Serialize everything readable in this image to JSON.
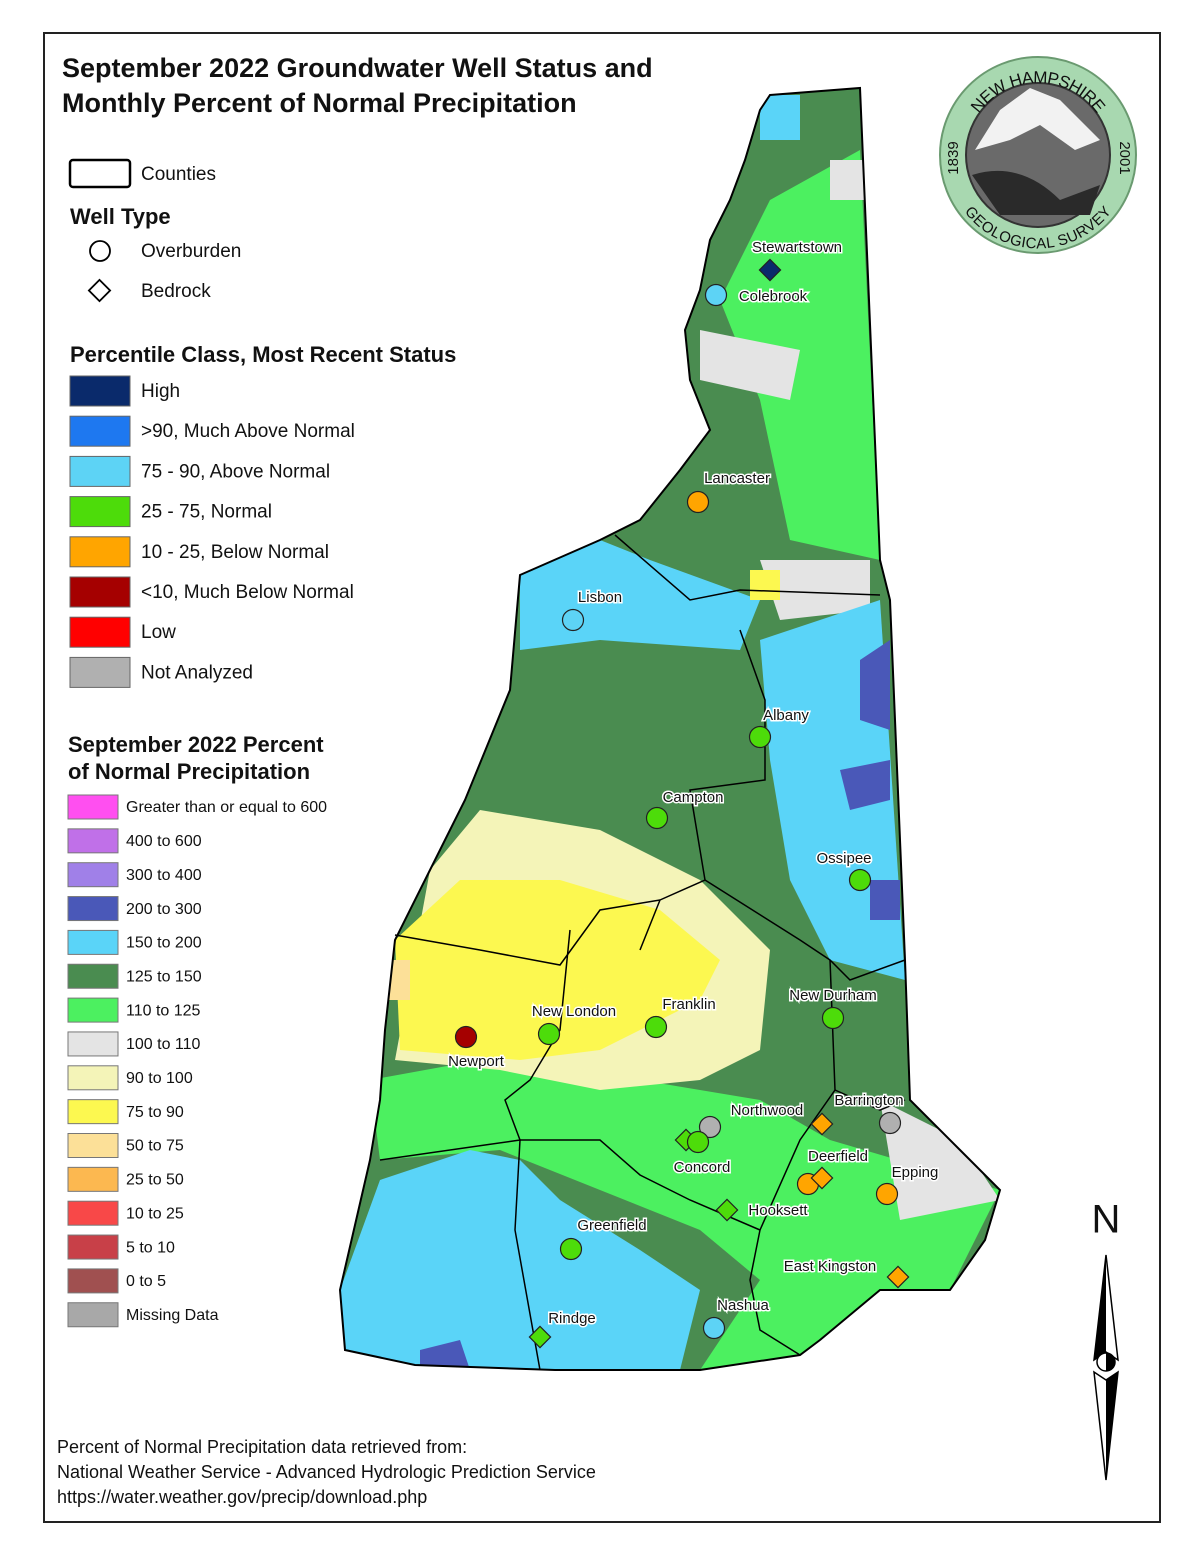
{
  "title_lines": [
    "September 2022 Groundwater Well Status and",
    "Monthly Percent of Normal Precipitation"
  ],
  "legend": {
    "counties": "Counties",
    "well_type": {
      "title": "Well Type",
      "items": [
        "Overburden",
        "Bedrock"
      ]
    },
    "percentile": {
      "title": "Percentile Class, Most Recent Status",
      "items": [
        {
          "label": "High",
          "color": "#0a2a6b"
        },
        {
          "label": ">90, Much Above Normal",
          "color": "#1e78f0"
        },
        {
          "label": "75 - 90, Above Normal",
          "color": "#5dd3f5"
        },
        {
          "label": "25 - 75, Normal",
          "color": "#4ddc0a"
        },
        {
          "label": "10 - 25, Below Normal",
          "color": "#ffa500"
        },
        {
          "label": "<10, Much Below Normal",
          "color": "#a50000"
        },
        {
          "label": "Low",
          "color": "#ff0000"
        },
        {
          "label": "Not Analyzed",
          "color": "#b0b0b0"
        }
      ]
    },
    "precip": {
      "title_lines": [
        "September 2022 Percent",
        "of Normal Precipitation"
      ],
      "items": [
        {
          "label": "Greater than or equal to 600",
          "color": "#ff4ff0"
        },
        {
          "label": "400 to 600",
          "color": "#c070e8"
        },
        {
          "label": "300 to 400",
          "color": "#a080e8"
        },
        {
          "label": "200 to 300",
          "color": "#4a58b8"
        },
        {
          "label": "150 to 200",
          "color": "#5ad4f8"
        },
        {
          "label": "125 to 150",
          "color": "#4a8c50"
        },
        {
          "label": "110 to 125",
          "color": "#4cf060"
        },
        {
          "label": "100 to 110",
          "color": "#e4e4e4"
        },
        {
          "label": "90 to 100",
          "color": "#f4f4b8"
        },
        {
          "label": "75 to 90",
          "color": "#fcf850"
        },
        {
          "label": "50 to 75",
          "color": "#fce098"
        },
        {
          "label": "25 to 50",
          "color": "#fcb850"
        },
        {
          "label": "10 to 25",
          "color": "#f84848"
        },
        {
          "label": "5 to 10",
          "color": "#c84048"
        },
        {
          "label": "0 to 5",
          "color": "#a05050"
        },
        {
          "label": "Missing Data",
          "color": "#a8a8a8"
        }
      ]
    }
  },
  "sites": [
    {
      "name": "Stewartstown",
      "wells": [
        {
          "type": "bedrock",
          "color": "#0a2a6b"
        }
      ]
    },
    {
      "name": "Colebrook",
      "wells": [
        {
          "type": "overburden",
          "color": "#5dd3f5"
        }
      ]
    },
    {
      "name": "Lancaster",
      "wells": [
        {
          "type": "overburden",
          "color": "#ffa500"
        }
      ]
    },
    {
      "name": "Lisbon",
      "wells": [
        {
          "type": "overburden",
          "color": "#5dd3f5"
        }
      ]
    },
    {
      "name": "Albany",
      "wells": [
        {
          "type": "overburden",
          "color": "#4ddc0a"
        }
      ]
    },
    {
      "name": "Campton",
      "wells": [
        {
          "type": "overburden",
          "color": "#4ddc0a"
        }
      ]
    },
    {
      "name": "Ossipee",
      "wells": [
        {
          "type": "overburden",
          "color": "#4ddc0a"
        }
      ]
    },
    {
      "name": "New Durham",
      "wells": [
        {
          "type": "overburden",
          "color": "#4ddc0a"
        }
      ]
    },
    {
      "name": "Franklin",
      "wells": [
        {
          "type": "overburden",
          "color": "#4ddc0a"
        }
      ]
    },
    {
      "name": "New London",
      "wells": [
        {
          "type": "overburden",
          "color": "#4ddc0a"
        }
      ]
    },
    {
      "name": "Newport",
      "wells": [
        {
          "type": "overburden",
          "color": "#a50000"
        }
      ]
    },
    {
      "name": "Northwood",
      "wells": [
        {
          "type": "overburden",
          "color": "#b0b0b0"
        },
        {
          "type": "bedrock",
          "color": "#ffa500"
        }
      ]
    },
    {
      "name": "Barrington",
      "wells": [
        {
          "type": "overburden",
          "color": "#b0b0b0"
        }
      ]
    },
    {
      "name": "Concord",
      "wells": [
        {
          "type": "bedrock",
          "color": "#4ddc0a"
        },
        {
          "type": "overburden",
          "color": "#4ddc0a"
        }
      ]
    },
    {
      "name": "Deerfield",
      "wells": [
        {
          "type": "overburden",
          "color": "#ffa500"
        },
        {
          "type": "bedrock",
          "color": "#ffa500"
        }
      ]
    },
    {
      "name": "Epping",
      "wells": [
        {
          "type": "overburden",
          "color": "#ffa500"
        }
      ]
    },
    {
      "name": "Hooksett",
      "wells": [
        {
          "type": "bedrock",
          "color": "#4ddc0a"
        }
      ]
    },
    {
      "name": "Greenfield",
      "wells": [
        {
          "type": "overburden",
          "color": "#4ddc0a"
        }
      ]
    },
    {
      "name": "East Kingston",
      "wells": [
        {
          "type": "bedrock",
          "color": "#ffa500"
        }
      ]
    },
    {
      "name": "Rindge",
      "wells": [
        {
          "type": "bedrock",
          "color": "#4ddc0a"
        }
      ]
    },
    {
      "name": "Nashua",
      "wells": [
        {
          "type": "overburden",
          "color": "#5dd3f5"
        }
      ]
    }
  ],
  "logo": {
    "top": "NEW HAMPSHIRE",
    "bottom": "GEOLOGICAL SURVEY",
    "left": "1839",
    "right": "2001"
  },
  "north": "N",
  "footer": [
    "Percent of Normal Precipitation data retrieved from:",
    "National Weather Service - Advanced Hydrologic Prediction Service",
    "https://water.weather.gov/precip/download.php"
  ]
}
